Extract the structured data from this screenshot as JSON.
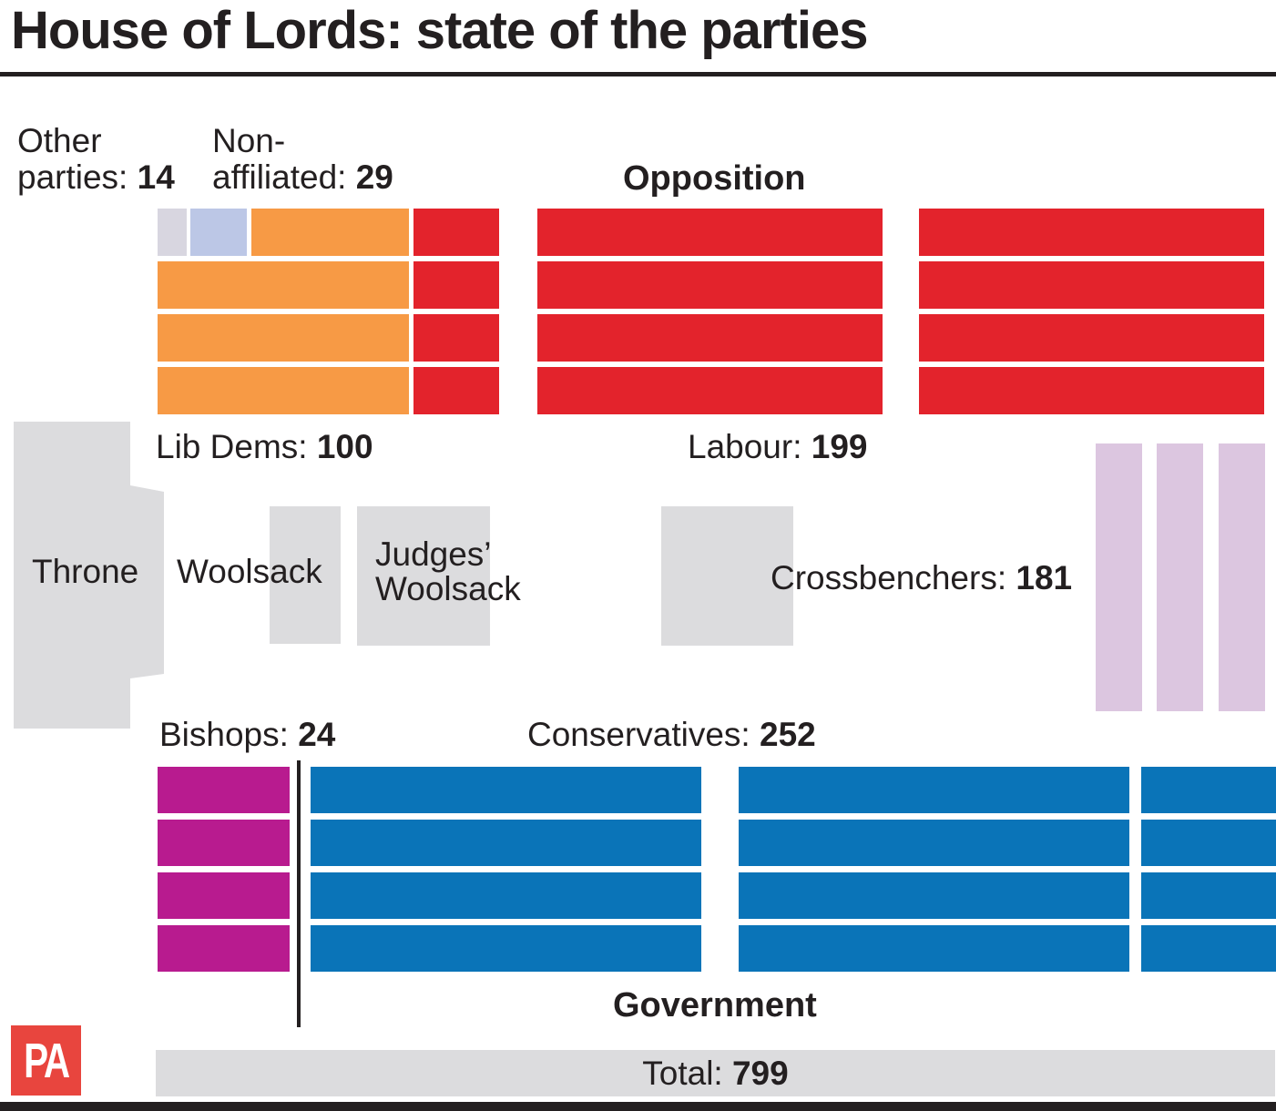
{
  "title": "House of Lords: state of the parties",
  "colors": {
    "other": "#d8d6e0",
    "non_affiliated": "#bcc7e6",
    "lib_dems": "#f79a45",
    "labour": "#e3232c",
    "crossbenchers": "#dcc6e0",
    "bishops": "#b81b8f",
    "conservatives": "#0a74b8",
    "furniture": "#dcdcde"
  },
  "labels": {
    "other_line1": "Other",
    "other_line2": "parties: ",
    "other_value": "14",
    "nonaff_line1": "Non-",
    "nonaff_line2": "affiliated: ",
    "nonaff_value": "29",
    "opposition": "Opposition",
    "libdems": "Lib Dems: ",
    "libdems_value": "100",
    "labour": "Labour: ",
    "labour_value": "199",
    "throne": "Throne",
    "woolsack": "Woolsack",
    "judges_line1": "Judges’",
    "judges_line2": "Woolsack",
    "crossbenchers": "Crossbenchers: ",
    "crossbenchers_value": "181",
    "bishops": "Bishops: ",
    "bishops_value": "24",
    "conservatives": "Conservatives: ",
    "conservatives_value": "252",
    "government": "Government",
    "total": "Total: ",
    "total_value": "799"
  },
  "logo": "PA"
}
